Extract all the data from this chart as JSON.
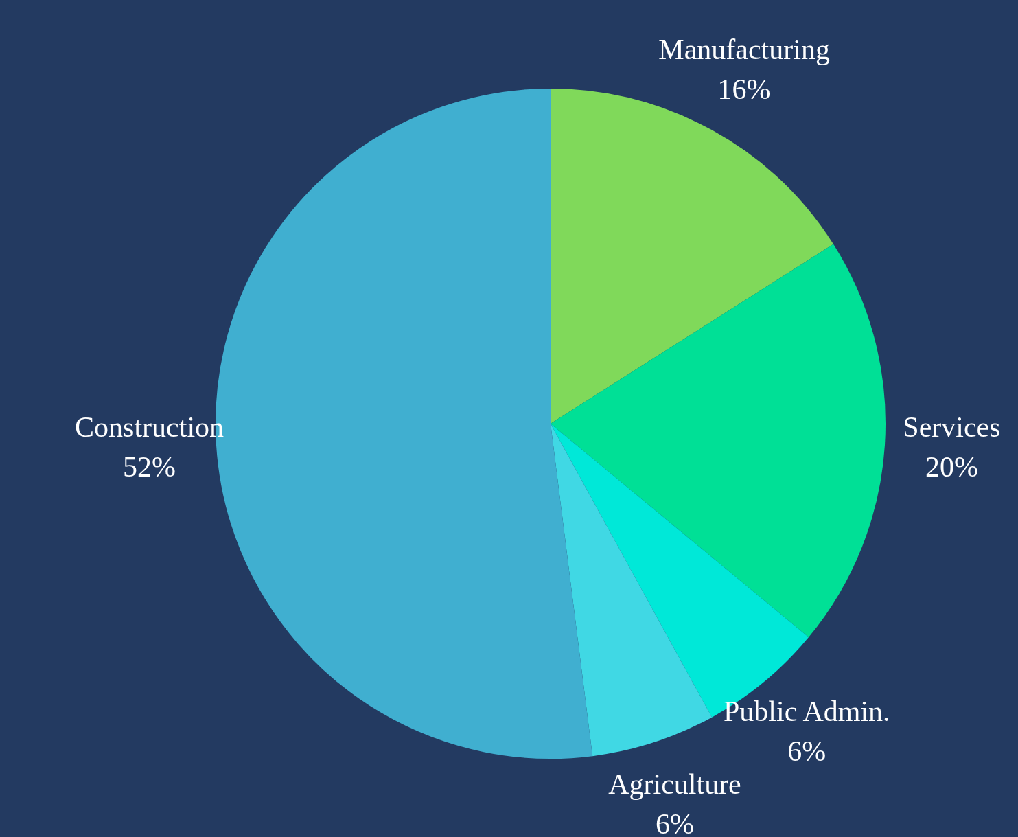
{
  "chart_data": {
    "type": "pie",
    "categories": [
      "Manufacturing",
      "Services",
      "Public Admin.",
      "Agriculture",
      "Construction"
    ],
    "values": [
      16,
      20,
      6,
      6,
      52
    ],
    "value_labels": [
      "16%",
      "20%",
      "6%",
      "6%",
      "52%"
    ],
    "colors": [
      "#80d95a",
      "#00e096",
      "#00e8d8",
      "#40d8e4",
      "#40afd0"
    ],
    "legend": false
  }
}
